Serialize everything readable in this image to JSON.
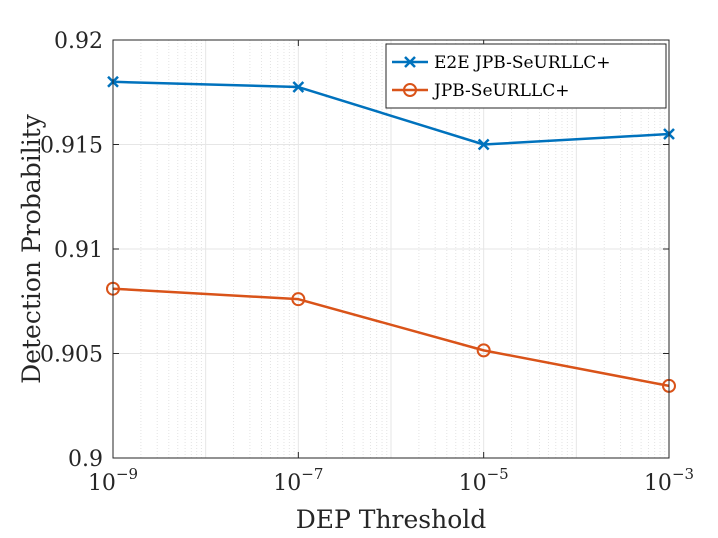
{
  "chart_data": {
    "type": "line",
    "title": "",
    "xlabel": "DEP Threshold",
    "ylabel": "Detection Probability",
    "x_scale": "log",
    "x": [
      1e-09,
      1e-07,
      1e-05,
      0.001
    ],
    "x_tick_labels": [
      {
        "base": "10",
        "exp": "−9"
      },
      {
        "base": "10",
        "exp": "−7"
      },
      {
        "base": "10",
        "exp": "−5"
      },
      {
        "base": "10",
        "exp": "−3"
      }
    ],
    "xlim_exp": [
      -9,
      -3
    ],
    "ylim": [
      0.9,
      0.92
    ],
    "y_ticks": [
      0.9,
      0.905,
      0.91,
      0.915,
      0.92
    ],
    "y_tick_labels": [
      "0.9",
      "0.905",
      "0.91",
      "0.915",
      "0.92"
    ],
    "grid": true,
    "legend_position": "top-right",
    "series": [
      {
        "name": "E2E JPB-SeURLLC+",
        "color": "#0072BD",
        "marker": "x",
        "values": [
          0.918,
          0.91775,
          0.915,
          0.9155
        ]
      },
      {
        "name": "JPB-SeURLLC+",
        "color": "#D95319",
        "marker": "o",
        "values": [
          0.9081,
          0.9076,
          0.90515,
          0.90345
        ]
      }
    ]
  }
}
